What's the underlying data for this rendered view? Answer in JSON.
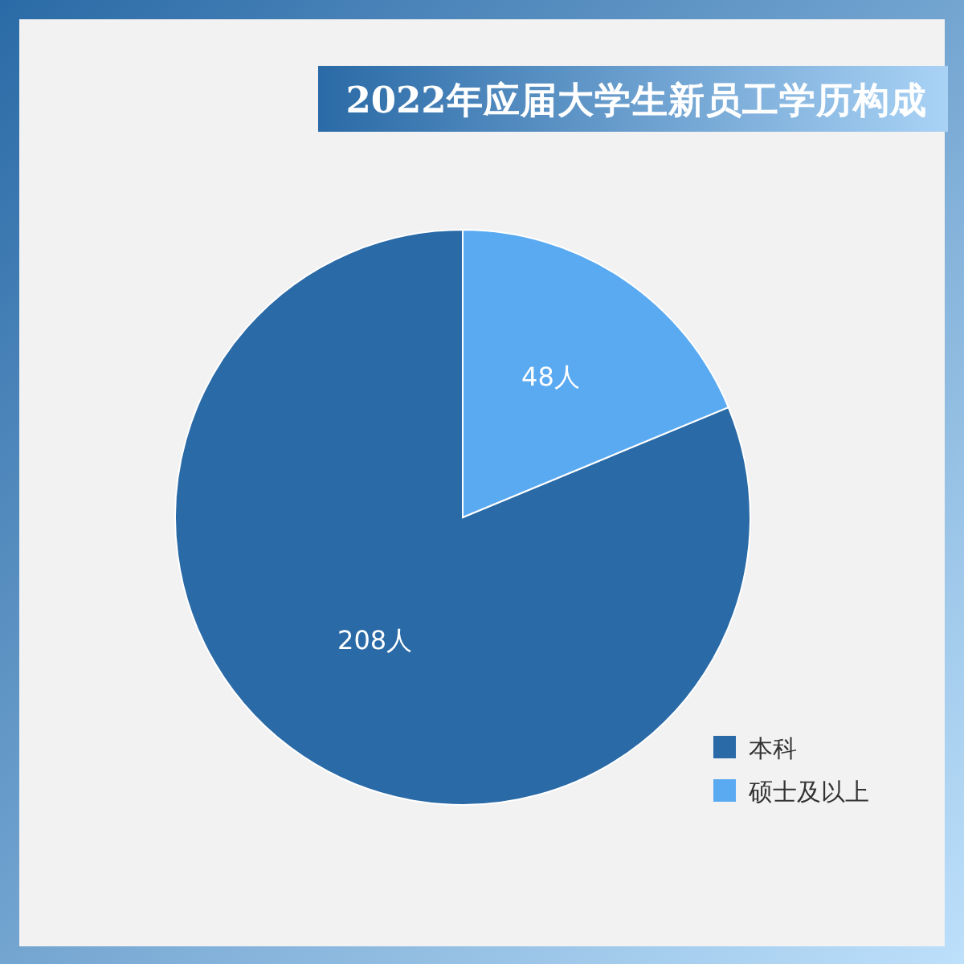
{
  "chart_data": {
    "type": "pie",
    "title": "2022年应届大学生新员工学历构成",
    "categories": [
      "本科",
      "硕士及以上"
    ],
    "values": [
      208,
      48
    ],
    "colors": [
      "#2a6aa6",
      "#5aaaf2"
    ],
    "value_labels": [
      "208人",
      "48人"
    ],
    "legend": "bottom right"
  }
}
